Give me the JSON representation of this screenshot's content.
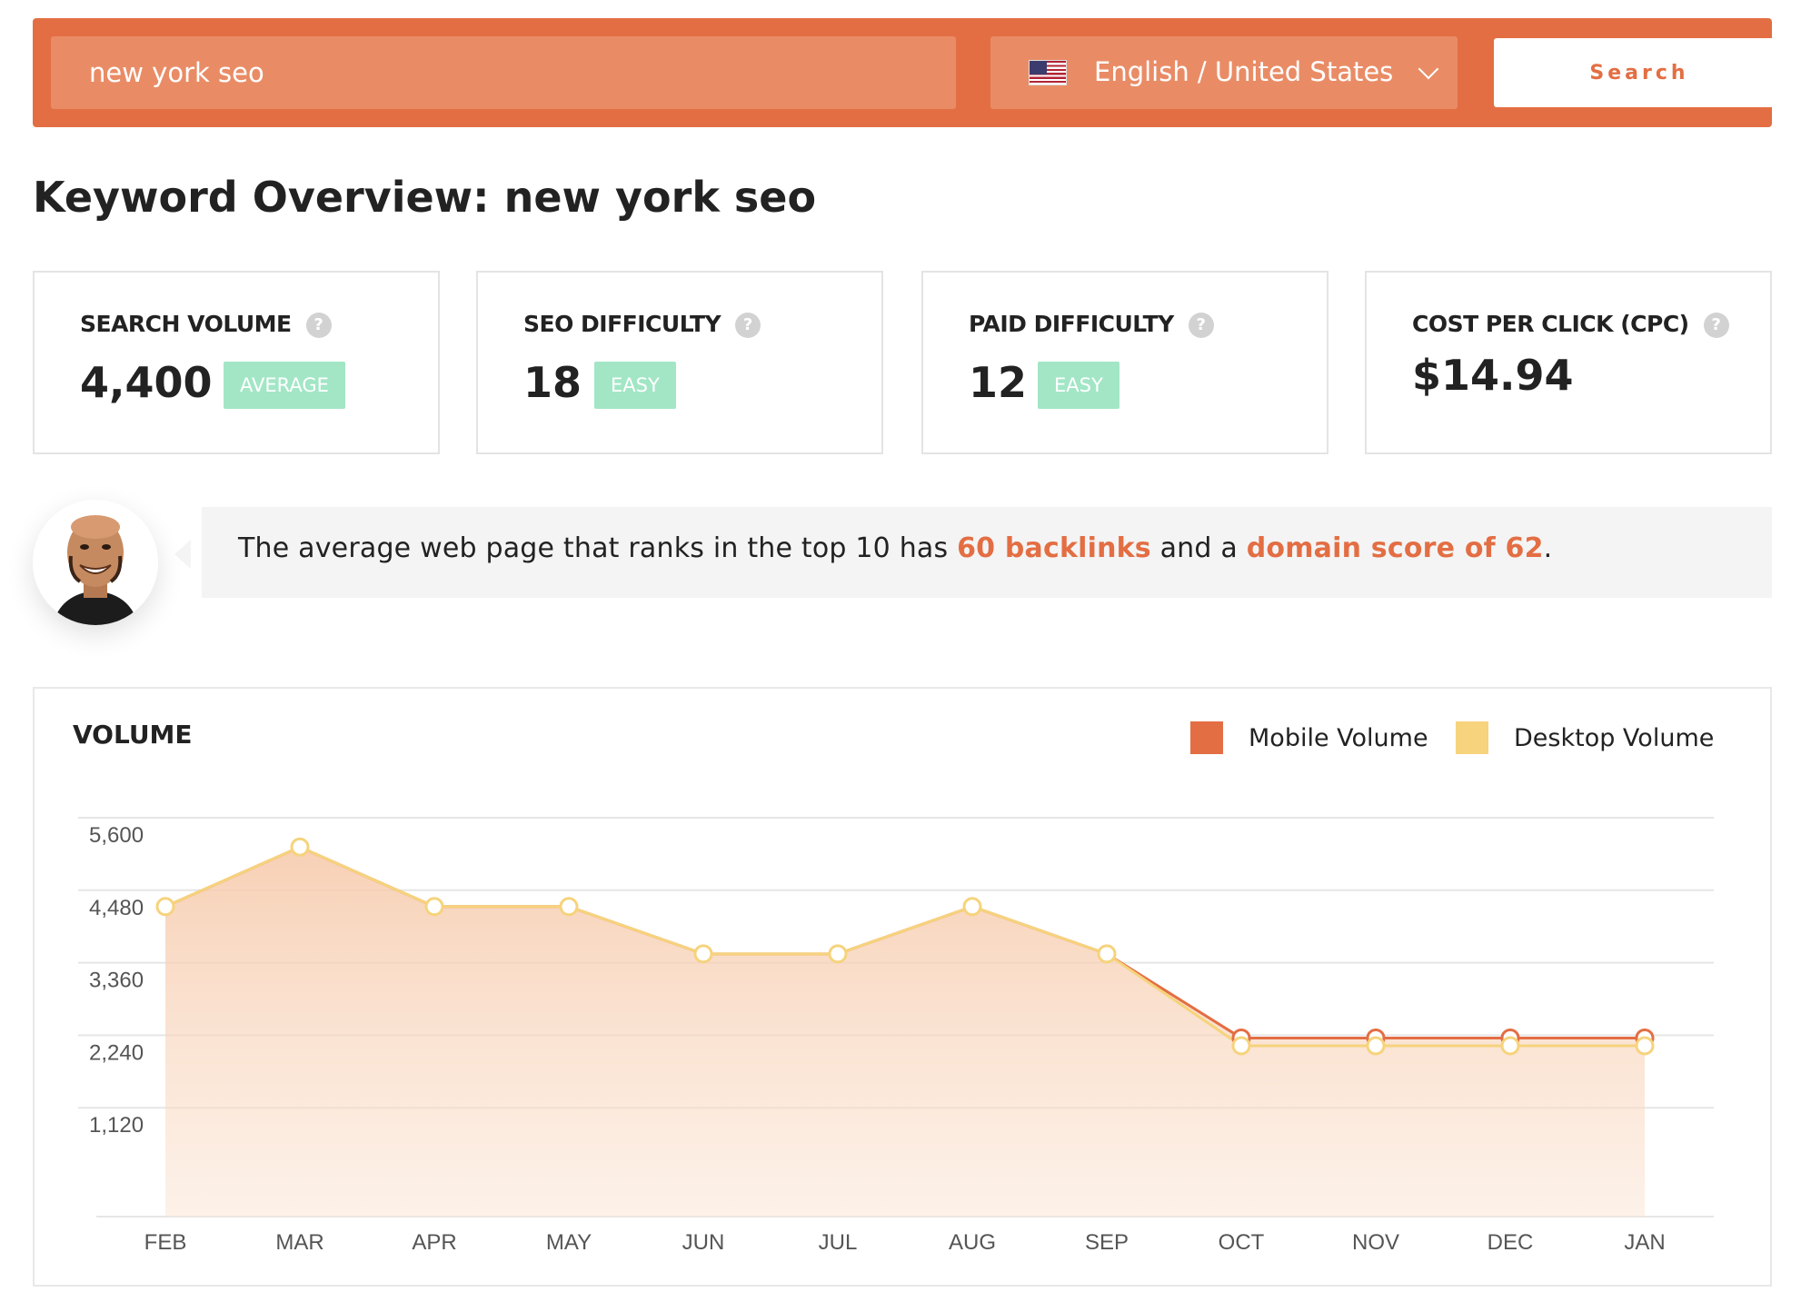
{
  "search": {
    "query": "new york seo",
    "language_label": "English / United States",
    "button_label": "Search"
  },
  "page": {
    "title_prefix": "Keyword Overview:",
    "title_keyword": "new york seo"
  },
  "metrics": [
    {
      "label": "SEARCH VOLUME",
      "value": "4,400",
      "badge": "AVERAGE"
    },
    {
      "label": "SEO DIFFICULTY",
      "value": "18",
      "badge": "EASY"
    },
    {
      "label": "PAID DIFFICULTY",
      "value": "12",
      "badge": "EASY"
    },
    {
      "label": "COST PER CLICK (CPC)",
      "value": "$14.94"
    }
  ],
  "help_symbol": "?",
  "insight": {
    "part1": "The average web page that ranks in the top 10 has ",
    "highlight1": "60 backlinks",
    "part2": " and a ",
    "highlight2": "domain score of 62",
    "part3": "."
  },
  "colors": {
    "accent": "#e36e43",
    "mobile_series": "#e36e43",
    "desktop_series": "#f6d37c",
    "badge": "#a2e6c6"
  },
  "chart_data": {
    "type": "area",
    "title": "VOLUME",
    "categories": [
      "FEB",
      "MAR",
      "APR",
      "MAY",
      "JUN",
      "JUL",
      "AUG",
      "SEP",
      "OCT",
      "NOV",
      "DEC",
      "JAN"
    ],
    "series": [
      {
        "name": "Mobile Volume",
        "values": [
          4480,
          5400,
          4480,
          4480,
          3750,
          3750,
          4480,
          3750,
          2450,
          2450,
          2450,
          2450
        ]
      },
      {
        "name": "Desktop Volume",
        "values": [
          4480,
          5400,
          4480,
          4480,
          3750,
          3750,
          4480,
          3750,
          2330,
          2330,
          2330,
          2330
        ]
      }
    ],
    "yticks": [
      "5,600",
      "4,480",
      "3,360",
      "2,240",
      "1,120"
    ],
    "ylim": [
      0,
      5600
    ],
    "grid": true,
    "legend_position": "top-right"
  }
}
